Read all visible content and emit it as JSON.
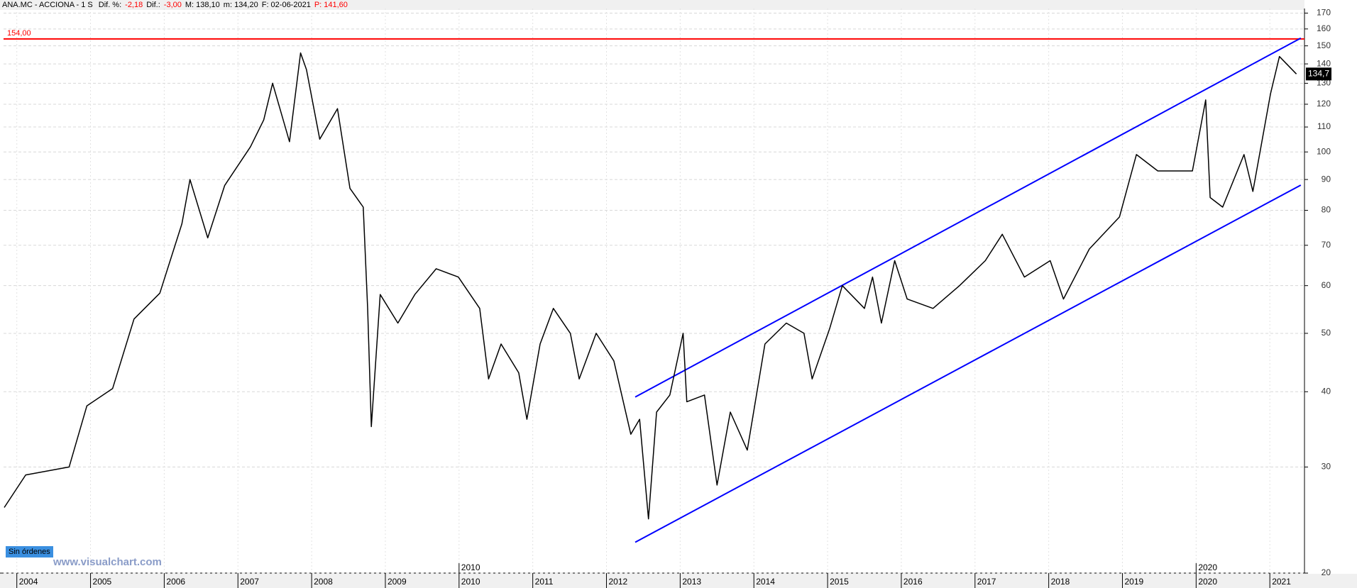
{
  "chart_data": {
    "type": "line",
    "header_fields": [
      {
        "text": "ANA.MC - ACCIONA - 1 S",
        "color": "#000000"
      },
      {
        "text": "Dif. %:",
        "color": "#000000"
      },
      {
        "text": "-2,18",
        "color": "#ff0000"
      },
      {
        "text": "Dif.:",
        "color": "#000000"
      },
      {
        "text": "-3,00",
        "color": "#ff0000"
      },
      {
        "text": "M: 138,10",
        "color": "#000000"
      },
      {
        "text": "m: 134,20",
        "color": "#000000"
      },
      {
        "text": "F: 02-06-2021",
        "color": "#000000"
      },
      {
        "text": "P: 141,60",
        "color": "#ff0000"
      }
    ],
    "log_y": true,
    "grid": true,
    "xlim": [
      2003.82,
      2021.47
    ],
    "xticks": [
      2004,
      2005,
      2006,
      2007,
      2008,
      2009,
      2010,
      2011,
      2012,
      2013,
      2014,
      2015,
      2016,
      2017,
      2018,
      2019,
      2020,
      2021
    ],
    "xticks_major": [
      2010,
      2020
    ],
    "ylim": [
      20,
      173
    ],
    "yticks": [
      20,
      30,
      40,
      50,
      60,
      70,
      80,
      90,
      100,
      110,
      120,
      130,
      140,
      150,
      160,
      170
    ],
    "series": [
      {
        "color": "#000000",
        "x": [
          2003.83,
          2004.12,
          2004.71,
          2004.95,
          2005.3,
          2005.59,
          2005.94,
          2006.24,
          2006.35,
          2006.59,
          2006.82,
          2007.17,
          2007.35,
          2007.47,
          2007.7,
          2007.85,
          2007.93,
          2008.11,
          2008.35,
          2008.52,
          2008.7,
          2008.76,
          2008.81,
          2008.93,
          2009.17,
          2009.4,
          2009.69,
          2009.99,
          2010.28,
          2010.4,
          2010.57,
          2010.81,
          2010.92,
          2011.1,
          2011.28,
          2011.51,
          2011.63,
          2011.86,
          2012.1,
          2012.33,
          2012.45,
          2012.57,
          2012.68,
          2012.86,
          2013.04,
          2013.09,
          2013.33,
          2013.5,
          2013.68,
          2013.91,
          2014.15,
          2014.44,
          2014.68,
          2014.79,
          2015.03,
          2015.2,
          2015.5,
          2015.61,
          2015.73,
          2015.91,
          2016.08,
          2016.43,
          2016.79,
          2017.14,
          2017.37,
          2017.67,
          2018.02,
          2018.2,
          2018.55,
          2018.96,
          2019.19,
          2019.48,
          2019.95,
          2020.13,
          2020.19,
          2020.36,
          2020.65,
          2020.77,
          2021.01,
          2021.13,
          2021.36
        ],
        "values": [
          25.7,
          29.1,
          30,
          37.9,
          40.5,
          52.8,
          58.3,
          76,
          90,
          72,
          88,
          102,
          113,
          130,
          104,
          146,
          137,
          105,
          118,
          87,
          81,
          55,
          35,
          58,
          52,
          58,
          64,
          62,
          55,
          42,
          48,
          43,
          36,
          48,
          55,
          50,
          42,
          50,
          45,
          34,
          36,
          24.6,
          37,
          39.5,
          50,
          38.5,
          39.5,
          28,
          37,
          32,
          48,
          52,
          50,
          42,
          51,
          60,
          55,
          62,
          52,
          66,
          57,
          55,
          60,
          66,
          73,
          62,
          66,
          57,
          69,
          78,
          99,
          93,
          93,
          122,
          84,
          81,
          99,
          86,
          125,
          144,
          134.7
        ]
      }
    ],
    "trendlines": [
      {
        "color": "#0000ff",
        "x": [
          2012.39,
          2021.42
        ],
        "values": [
          39.2,
          154.5
        ]
      },
      {
        "color": "#0000ff",
        "x": [
          2012.39,
          2021.42
        ],
        "values": [
          22.5,
          88.1
        ]
      }
    ],
    "hline": {
      "value": 154,
      "label": "154,00",
      "color": "#ff0000"
    },
    "last_price": {
      "value": 134.7,
      "label": "134,7"
    },
    "status_badge": "Sin órdenes",
    "watermark": "www.visualchart.com"
  }
}
